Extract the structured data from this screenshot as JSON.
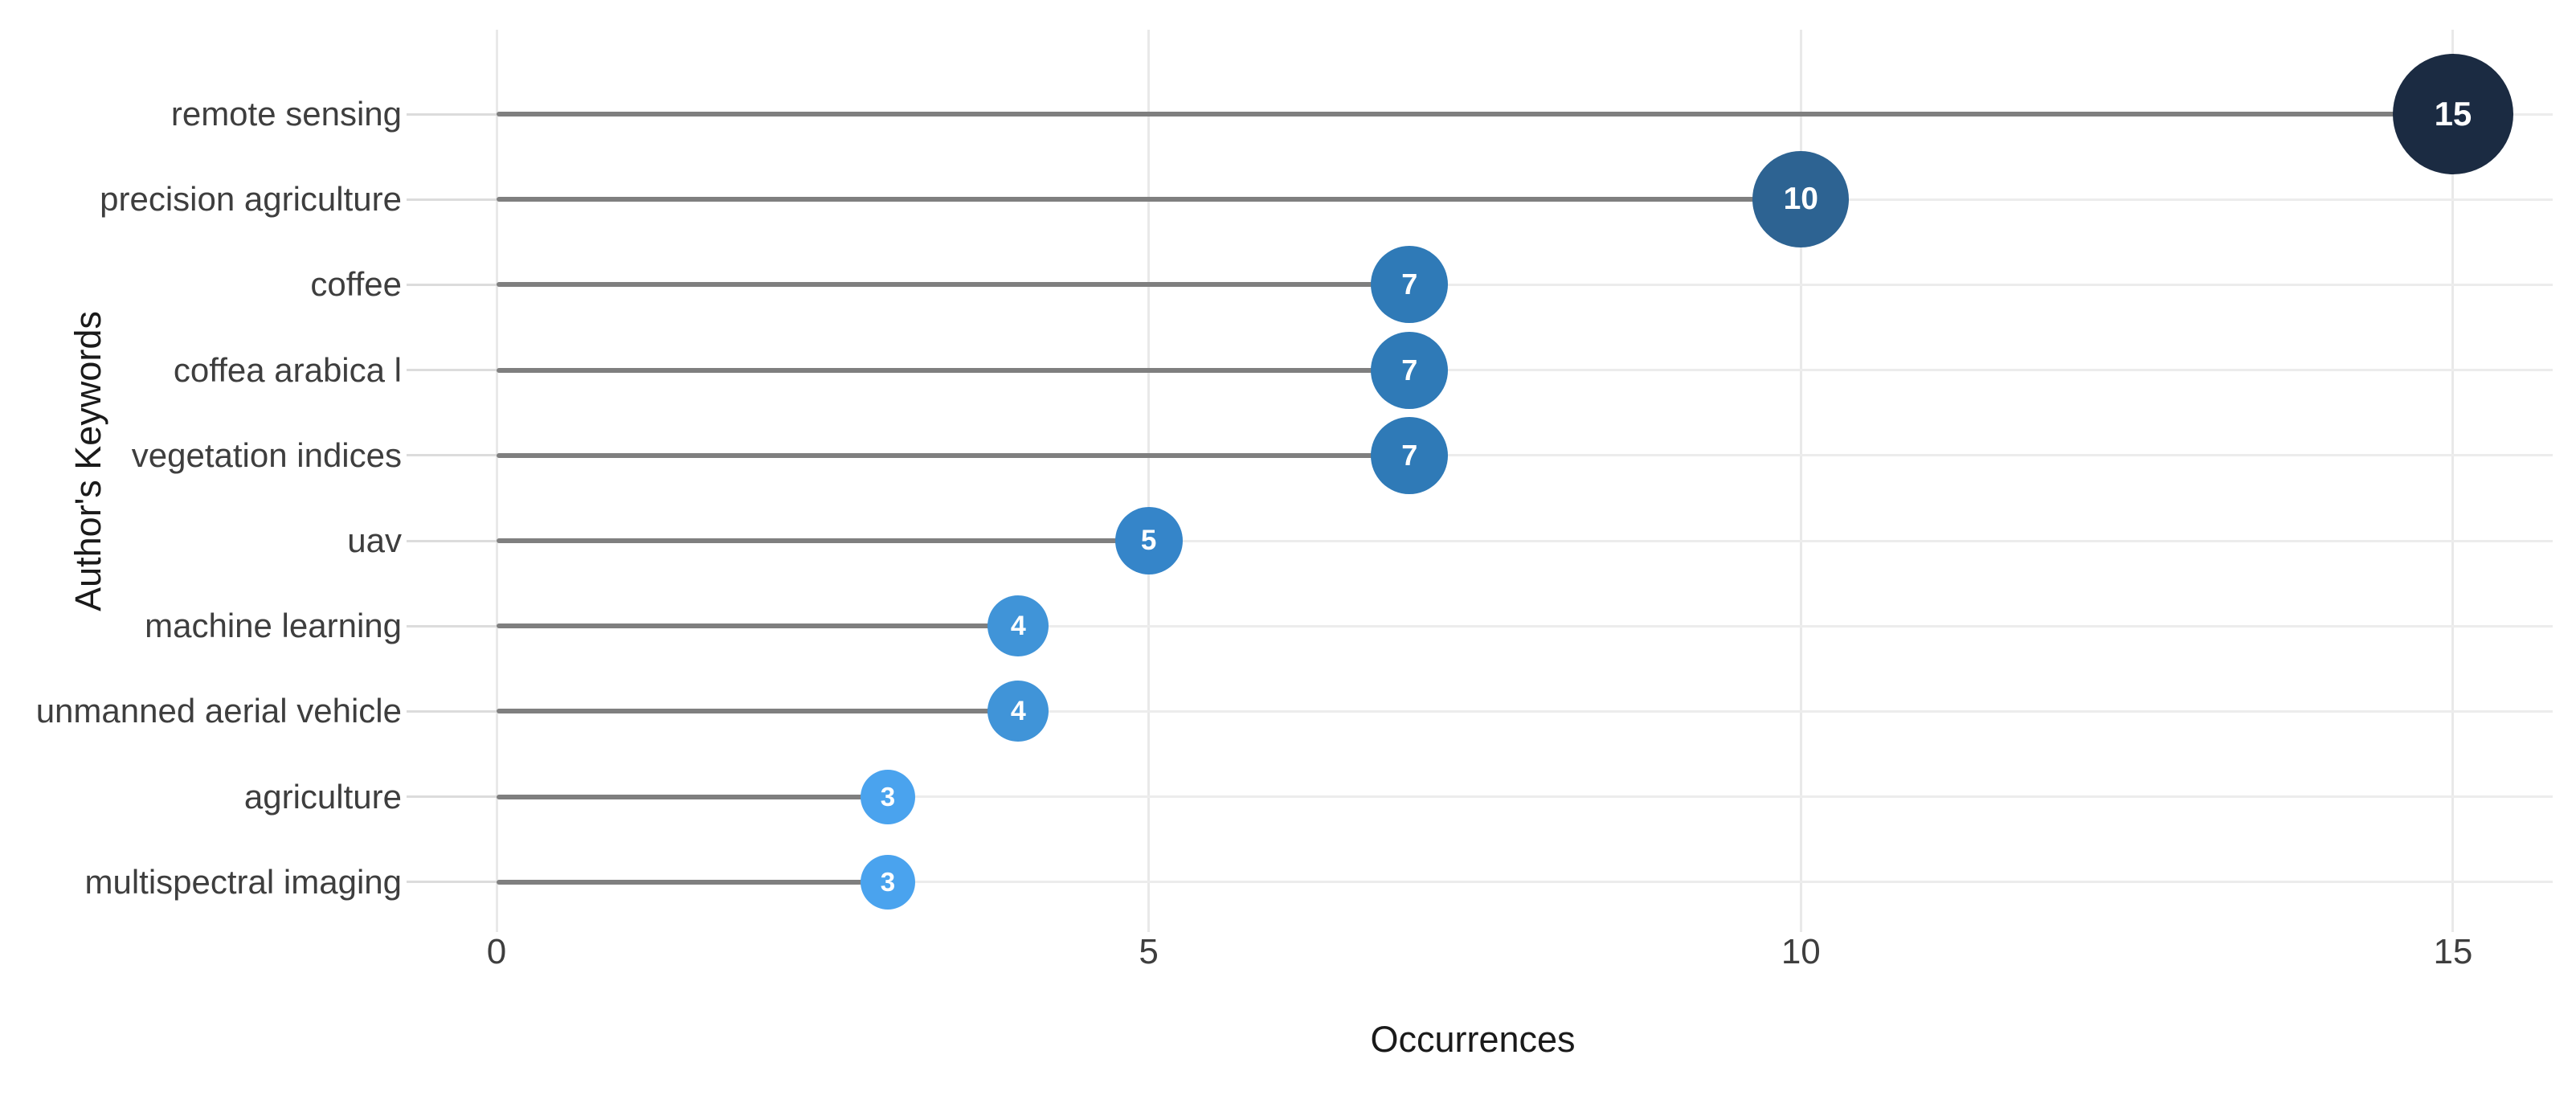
{
  "chart_data": {
    "type": "scatter",
    "variant": "horizontal-lollipop-bubble",
    "title": "",
    "xlabel": "Occurrences",
    "ylabel": "Author's Keywords",
    "categories": [
      "remote sensing",
      "precision agriculture",
      "coffee",
      "coffea arabica l",
      "vegetation indices",
      "uav",
      "machine learning",
      "unmanned aerial vehicle",
      "agriculture",
      "multispectral imaging"
    ],
    "values": [
      15,
      10,
      7,
      7,
      7,
      5,
      4,
      4,
      3,
      3
    ],
    "point_labels": [
      "15",
      "10",
      "7",
      "7",
      "7",
      "5",
      "4",
      "4",
      "3",
      "3"
    ],
    "xticks": [
      "0",
      "5",
      "10",
      "15"
    ],
    "xtick_values": [
      0,
      5,
      10,
      15
    ],
    "xlim": [
      0,
      15.8
    ],
    "grid": true,
    "legend": false,
    "colors": {
      "background": "#ffffff",
      "stem": "#7f7f7f",
      "x_gridline": "#e9e9e9",
      "row_gridline": "#ececec",
      "y_tick_line": "#dcdcdc",
      "category_text": "#3e3e3e",
      "tick_text": "#3e3e3e",
      "axis_title_text": "#1a1a1a",
      "bubble_text": "#ffffff",
      "bubble_by_value": {
        "15": "#1b2b42",
        "10": "#2d6392",
        "7": "#2f7ab7",
        "5": "#3585c9",
        "4": "#4094d8",
        "3": "#4aa3ee"
      }
    },
    "bubble_radius_by_value": {
      "15": 75,
      "10": 60,
      "7": 48,
      "5": 42,
      "4": 38,
      "3": 34
    }
  }
}
